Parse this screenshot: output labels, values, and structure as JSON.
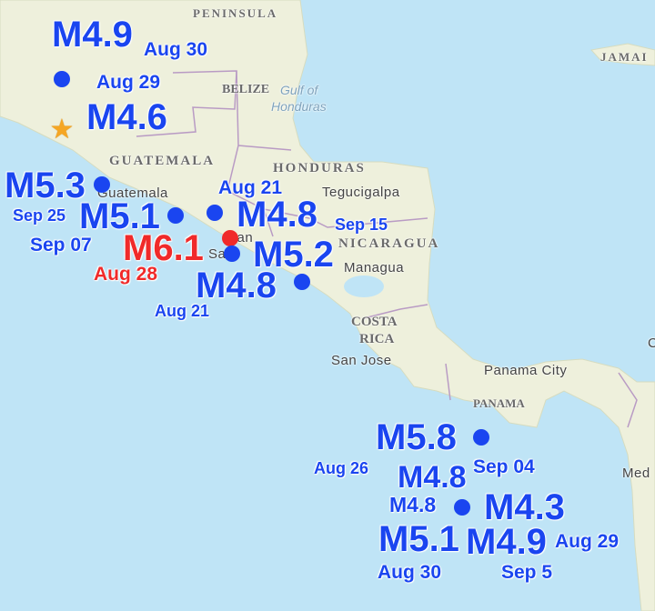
{
  "map": {
    "ocean_color": "#bfe4f6",
    "land_color": "#eef0dc",
    "marker_color": "#1a45f0",
    "highlight_color": "#f02a2a",
    "places": {
      "peninsula": "PENINSULA",
      "belize": "BELIZE",
      "gulf": "Gulf of",
      "honduras_gulf": "Honduras",
      "guatemala_country": "GUATEMALA",
      "guatemala_city": "Guatemala",
      "honduras": "HONDURAS",
      "tegucigalpa": "Tegucigalpa",
      "nicaragua": "NICARAGUA",
      "managua": "Managua",
      "san": "San",
      "salvador": "Sa",
      "costa": "COSTA",
      "rica": "RICA",
      "san_jose": "San Jose",
      "panama_city": "Panama City",
      "panama": "PANAMA",
      "jamaica": "JAMAI",
      "medellin": "Med",
      "edge_c": "C"
    }
  },
  "quakes": {
    "m49_a": "M4.9",
    "aug30_a": "Aug 30",
    "aug29_a": "Aug 29",
    "m46": "M4.6",
    "m53": "M5.3",
    "sep25": "Sep 25",
    "m51_a": "M5.1",
    "sep07": "Sep 07",
    "m61": "M6.1",
    "aug28": "Aug 28",
    "aug21_a": "Aug 21",
    "m48_a": "M4.8",
    "sep15": "Sep 15",
    "m52": "M5.2",
    "m48_b": "M4.8",
    "aug21_b": "Aug 21",
    "m58": "M5.8",
    "aug26": "Aug 26",
    "sep04": "Sep 04",
    "m48_c": "M4.8",
    "m48_d": "M4.8",
    "m43": "M4.3",
    "m51_b": "M5.1",
    "m49_b": "M4.9",
    "aug29_b": "Aug 29",
    "sep5": "Sep 5",
    "aug30_b": "Aug 30"
  }
}
